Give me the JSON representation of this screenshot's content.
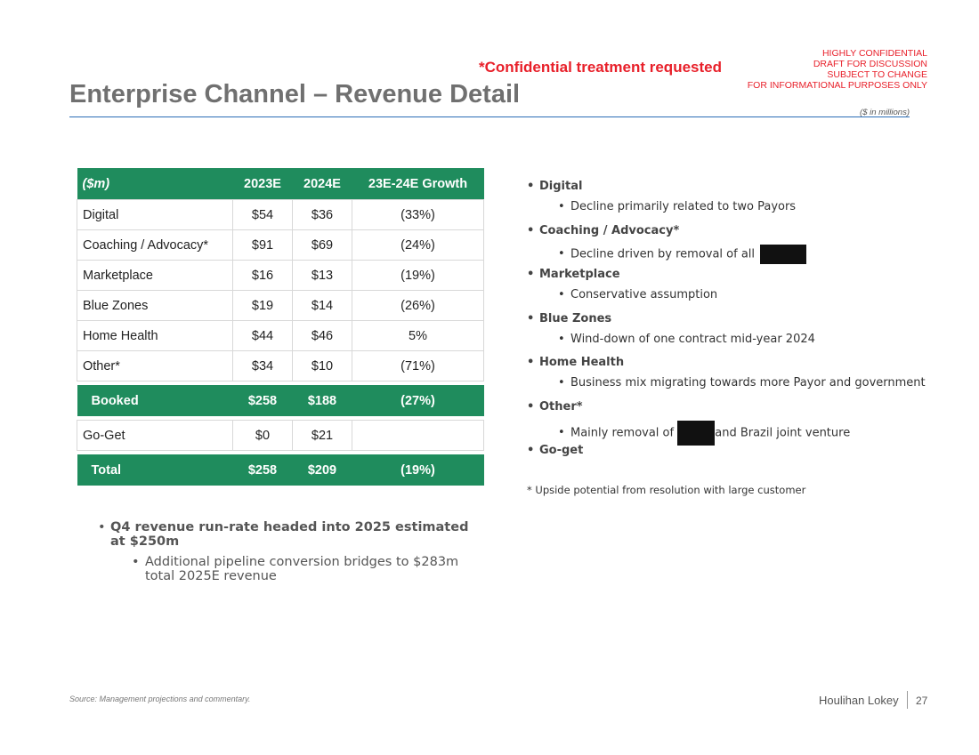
{
  "header": {
    "title": "Enterprise Channel – Revenue Detail",
    "confidential_red": "*Confidential treatment requested",
    "confidential_lines": [
      "HIGHLY CONFIDENTIAL",
      "DRAFT FOR DISCUSSION",
      "SUBJECT TO CHANGE",
      "FOR INFORMATIONAL PURPOSES ONLY"
    ],
    "units": "($ in millions)"
  },
  "table": {
    "headers": [
      "($m)",
      "2023E",
      "2024E",
      "23E-24E Growth"
    ],
    "rows": [
      [
        "Digital",
        "$54",
        "$36",
        "(33%)"
      ],
      [
        "Coaching / Advocacy*",
        "$91",
        "$69",
        "(24%)"
      ],
      [
        "Marketplace",
        "$16",
        "$13",
        "(19%)"
      ],
      [
        "Blue Zones",
        "$19",
        "$14",
        "(26%)"
      ],
      [
        "Home Health",
        "$44",
        "$46",
        "5%"
      ],
      [
        "Other*",
        "$34",
        "$10",
        "(71%)"
      ]
    ],
    "booked": [
      "Booked",
      "$258",
      "$188",
      "(27%)"
    ],
    "goget": [
      "Go-Get",
      "$0",
      "$21",
      ""
    ],
    "total": [
      "Total",
      "$258",
      "$209",
      "(19%)"
    ]
  },
  "commentary": {
    "items": [
      {
        "title": "Digital",
        "detail": "Decline primarily related to two Payors"
      },
      {
        "title": "Coaching / Advocacy*",
        "detail": "Decline driven by removal of all"
      },
      {
        "title": "Marketplace",
        "detail": "Conservative assumption"
      },
      {
        "title": "Blue Zones",
        "detail": "Wind-down of one contract mid-year 2024"
      },
      {
        "title": "Home Health",
        "detail": "Business mix migrating towards more Payor and government"
      },
      {
        "title": "Other*",
        "detail_pre": "Mainly removal of",
        "detail_post": "and Brazil joint venture"
      },
      {
        "title": "Go-get"
      }
    ],
    "footnote": "* Upside potential from resolution with large customer"
  },
  "runrate": {
    "main": "Q4 revenue run-rate headed into 2025 estimated at $250m",
    "sub": "Additional pipeline conversion bridges to $283m total 2025E revenue"
  },
  "footer": {
    "source": "Source: Management projections and commentary.",
    "brand": "Houlihan Lokey",
    "page": "27"
  }
}
